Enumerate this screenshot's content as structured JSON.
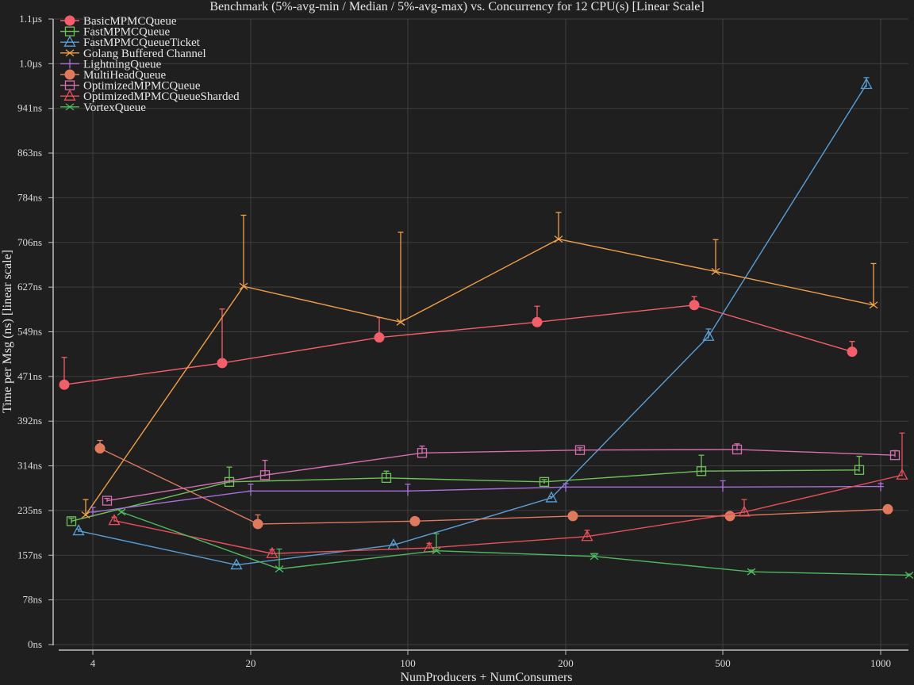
{
  "chart_data": {
    "type": "line",
    "title": "Benchmark (5%-avg-min / Median / 5%-avg-max) vs. Concurrency for 12 CPU(s) [Linear Scale]",
    "xlabel": "NumProducers + NumConsumers",
    "ylabel": "Time per Msg (ns) [linear scale]",
    "x_scale": "categorical",
    "categories": [
      "4",
      "20",
      "100",
      "200",
      "500",
      "1000"
    ],
    "y_ticks": [
      "0ns",
      "78ns",
      "157ns",
      "235ns",
      "314ns",
      "392ns",
      "471ns",
      "549ns",
      "627ns",
      "706ns",
      "784ns",
      "863ns",
      "941ns",
      "1.0µs",
      "1.1µs"
    ],
    "ylim": [
      0,
      1100
    ],
    "grid": true,
    "legend_position": "top-left",
    "series": [
      {
        "name": "BasicMPMCQueue",
        "color": "#f25f6b",
        "marker": "circle-filled",
        "values": [
          457,
          495,
          540,
          567,
          597,
          515
        ],
        "lows": [
          455,
          493,
          538,
          565,
          595,
          513
        ],
        "highs": [
          505,
          590,
          575,
          595,
          612,
          533
        ]
      },
      {
        "name": "FastMPMCQueue",
        "color": "#6fc25a",
        "marker": "square-open",
        "values": [
          217,
          286,
          293,
          286,
          305,
          307
        ],
        "lows": [
          213,
          284,
          291,
          283,
          302,
          304
        ],
        "highs": [
          222,
          312,
          305,
          290,
          333,
          331
        ]
      },
      {
        "name": "FastMPMCQueueTicket",
        "color": "#5a9fd6",
        "marker": "triangle-open",
        "values": [
          200,
          140,
          175,
          258,
          542,
          985
        ],
        "lows": [
          198,
          138,
          173,
          256,
          538,
          980
        ],
        "highs": [
          203,
          142,
          177,
          260,
          555,
          997
        ]
      },
      {
        "name": "Golang Buffered Channel",
        "color": "#f0a04b",
        "marker": "x",
        "values": [
          228,
          630,
          567,
          713,
          656,
          597
        ],
        "lows": [
          226,
          628,
          565,
          711,
          654,
          595
        ],
        "highs": [
          255,
          755,
          725,
          760,
          712,
          670
        ]
      },
      {
        "name": "LightningQueue",
        "color": "#a870d8",
        "marker": "tick",
        "values": [
          233,
          270,
          270,
          277,
          277,
          278
        ],
        "lows": [
          231,
          268,
          267,
          275,
          275,
          277
        ],
        "highs": [
          241,
          282,
          282,
          283,
          288,
          283
        ]
      },
      {
        "name": "MultiHeadQueue",
        "color": "#e07a5f",
        "marker": "circle-filled",
        "values": [
          345,
          212,
          217,
          226,
          226,
          238
        ],
        "lows": [
          343,
          210,
          215,
          224,
          224,
          236
        ],
        "highs": [
          359,
          228,
          220,
          230,
          230,
          245
        ]
      },
      {
        "name": "OptimizedMPMCQueue",
        "color": "#d46fb0",
        "marker": "square-open",
        "values": [
          253,
          298,
          337,
          342,
          343,
          333
        ],
        "lows": [
          251,
          296,
          335,
          340,
          341,
          330
        ],
        "highs": [
          257,
          324,
          349,
          346,
          353,
          341
        ]
      },
      {
        "name": "OptimizedMPMCQueueSharded",
        "color": "#e8505b",
        "marker": "triangle-open",
        "values": [
          218,
          160,
          170,
          190,
          233,
          298
        ],
        "lows": [
          216,
          158,
          168,
          188,
          231,
          296
        ],
        "highs": [
          224,
          167,
          178,
          201,
          255,
          372
        ]
      },
      {
        "name": "VortexQueue",
        "color": "#4fb85e",
        "marker": "x",
        "values": [
          233,
          133,
          165,
          155,
          128,
          122
        ],
        "lows": [
          231,
          131,
          163,
          153,
          126,
          120
        ],
        "highs": [
          235,
          168,
          195,
          160,
          131,
          124
        ]
      }
    ]
  }
}
